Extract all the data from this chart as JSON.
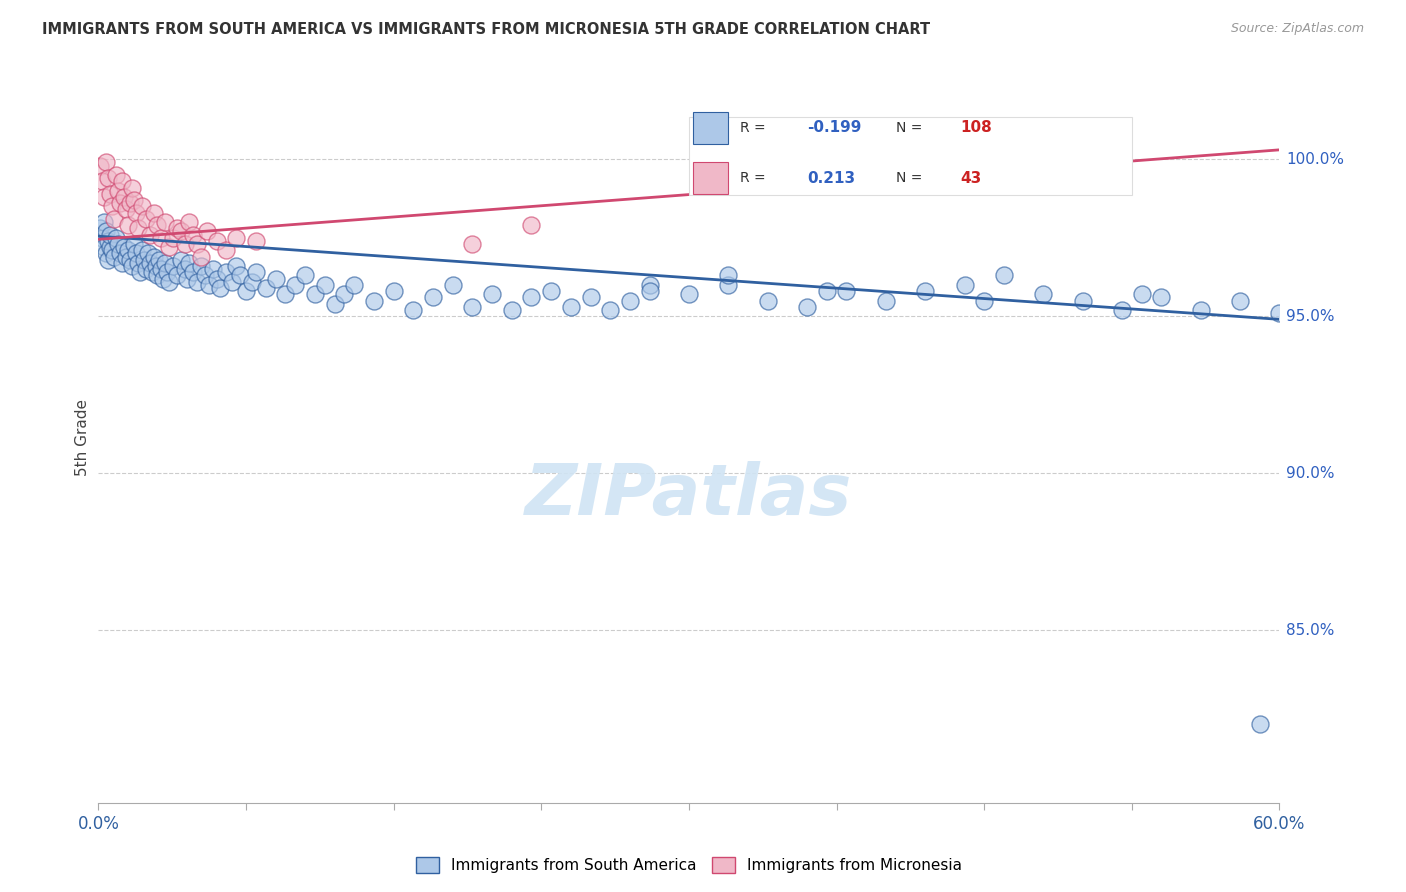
{
  "title": "IMMIGRANTS FROM SOUTH AMERICA VS IMMIGRANTS FROM MICRONESIA 5TH GRADE CORRELATION CHART",
  "source": "Source: ZipAtlas.com",
  "ylabel": "5th Grade",
  "ytick_labels": [
    "100.0%",
    "95.0%",
    "90.0%",
    "85.0%"
  ],
  "ytick_values": [
    1.0,
    0.95,
    0.9,
    0.85
  ],
  "xmin": 0.0,
  "xmax": 0.6,
  "ymin": 0.795,
  "ymax": 1.028,
  "legend_blue_label": "Immigrants from South America",
  "legend_pink_label": "Immigrants from Micronesia",
  "R_blue": -0.199,
  "N_blue": 108,
  "R_pink": 0.213,
  "N_pink": 43,
  "blue_color": "#adc8e8",
  "blue_line_color": "#3060a0",
  "pink_color": "#f0b8c8",
  "pink_line_color": "#d04870",
  "blue_scatter_x": [
    0.001,
    0.002,
    0.003,
    0.003,
    0.004,
    0.004,
    0.005,
    0.005,
    0.006,
    0.006,
    0.007,
    0.008,
    0.009,
    0.01,
    0.011,
    0.012,
    0.013,
    0.014,
    0.015,
    0.016,
    0.017,
    0.018,
    0.019,
    0.02,
    0.021,
    0.022,
    0.023,
    0.024,
    0.025,
    0.026,
    0.027,
    0.028,
    0.029,
    0.03,
    0.031,
    0.032,
    0.033,
    0.034,
    0.035,
    0.036,
    0.038,
    0.04,
    0.042,
    0.044,
    0.045,
    0.046,
    0.048,
    0.05,
    0.052,
    0.054,
    0.056,
    0.058,
    0.06,
    0.062,
    0.065,
    0.068,
    0.07,
    0.072,
    0.075,
    0.078,
    0.08,
    0.085,
    0.09,
    0.095,
    0.1,
    0.105,
    0.11,
    0.115,
    0.12,
    0.125,
    0.13,
    0.14,
    0.15,
    0.16,
    0.17,
    0.18,
    0.19,
    0.2,
    0.21,
    0.22,
    0.23,
    0.24,
    0.25,
    0.26,
    0.27,
    0.28,
    0.3,
    0.32,
    0.34,
    0.36,
    0.38,
    0.4,
    0.42,
    0.44,
    0.46,
    0.48,
    0.5,
    0.52,
    0.54,
    0.56,
    0.58,
    0.6,
    0.53,
    0.45,
    0.37,
    0.32,
    0.28,
    0.59
  ],
  "blue_scatter_y": [
    0.978,
    0.975,
    0.972,
    0.98,
    0.97,
    0.977,
    0.974,
    0.968,
    0.972,
    0.976,
    0.971,
    0.969,
    0.975,
    0.973,
    0.97,
    0.967,
    0.972,
    0.969,
    0.971,
    0.968,
    0.966,
    0.973,
    0.97,
    0.967,
    0.964,
    0.971,
    0.968,
    0.965,
    0.97,
    0.967,
    0.964,
    0.969,
    0.966,
    0.963,
    0.968,
    0.965,
    0.962,
    0.967,
    0.964,
    0.961,
    0.966,
    0.963,
    0.968,
    0.965,
    0.962,
    0.967,
    0.964,
    0.961,
    0.966,
    0.963,
    0.96,
    0.965,
    0.962,
    0.959,
    0.964,
    0.961,
    0.966,
    0.963,
    0.958,
    0.961,
    0.964,
    0.959,
    0.962,
    0.957,
    0.96,
    0.963,
    0.957,
    0.96,
    0.954,
    0.957,
    0.96,
    0.955,
    0.958,
    0.952,
    0.956,
    0.96,
    0.953,
    0.957,
    0.952,
    0.956,
    0.958,
    0.953,
    0.956,
    0.952,
    0.955,
    0.96,
    0.957,
    0.96,
    0.955,
    0.953,
    0.958,
    0.955,
    0.958,
    0.96,
    0.963,
    0.957,
    0.955,
    0.952,
    0.956,
    0.952,
    0.955,
    0.951,
    0.957,
    0.955,
    0.958,
    0.963,
    0.958,
    0.82
  ],
  "pink_scatter_x": [
    0.001,
    0.002,
    0.003,
    0.004,
    0.005,
    0.006,
    0.007,
    0.008,
    0.009,
    0.01,
    0.011,
    0.012,
    0.013,
    0.014,
    0.015,
    0.016,
    0.017,
    0.018,
    0.019,
    0.02,
    0.022,
    0.024,
    0.026,
    0.028,
    0.03,
    0.032,
    0.034,
    0.036,
    0.038,
    0.04,
    0.042,
    0.044,
    0.046,
    0.048,
    0.05,
    0.052,
    0.055,
    0.06,
    0.065,
    0.07,
    0.08,
    0.19,
    0.22
  ],
  "pink_scatter_y": [
    0.998,
    0.993,
    0.988,
    0.999,
    0.994,
    0.989,
    0.985,
    0.981,
    0.995,
    0.99,
    0.986,
    0.993,
    0.988,
    0.984,
    0.979,
    0.986,
    0.991,
    0.987,
    0.983,
    0.978,
    0.985,
    0.981,
    0.976,
    0.983,
    0.979,
    0.975,
    0.98,
    0.972,
    0.975,
    0.978,
    0.977,
    0.973,
    0.98,
    0.976,
    0.973,
    0.969,
    0.977,
    0.974,
    0.971,
    0.975,
    0.974,
    0.973,
    0.979
  ],
  "blue_trendline_x": [
    0.0,
    0.6
  ],
  "blue_trendline_y": [
    0.9755,
    0.949
  ],
  "pink_trendline_x": [
    0.0,
    0.6
  ],
  "pink_trendline_y": [
    0.9745,
    1.003
  ],
  "xtick_positions": [
    0.0,
    0.075,
    0.15,
    0.225,
    0.3,
    0.375,
    0.45,
    0.525,
    0.6
  ],
  "watermark_text": "ZIPatlas",
  "watermark_color": "#d0e4f4"
}
